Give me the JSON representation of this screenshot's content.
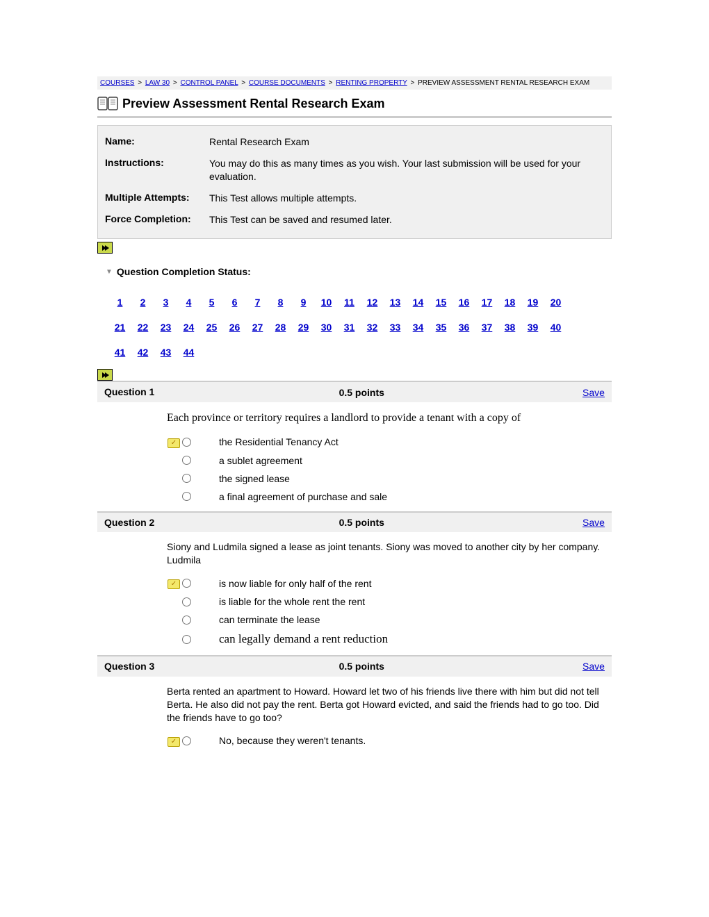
{
  "breadcrumb": {
    "items": [
      {
        "label": "COURSES"
      },
      {
        "label": "LAW 30"
      },
      {
        "label": "CONTROL PANEL"
      },
      {
        "label": "COURSE DOCUMENTS"
      },
      {
        "label": "RENTING PROPERTY"
      }
    ],
    "current": "PREVIEW ASSESSMENT RENTAL RESEARCH EXAM",
    "sep": ">"
  },
  "page_title": "Preview Assessment Rental Research Exam",
  "info": {
    "name_label": "Name:",
    "name_value": "Rental Research Exam",
    "instructions_label": "Instructions:",
    "instructions_value": "You may do this as many times as you wish. Your last submission will be used for your evaluation.",
    "attempts_label": "Multiple Attempts:",
    "attempts_value": "This Test allows multiple attempts.",
    "force_label": "Force Completion:",
    "force_value": "This Test can be saved and resumed later."
  },
  "qcs_label": "Question Completion Status:",
  "qnav": {
    "total": 44
  },
  "save_label": "Save",
  "questions": [
    {
      "num": "Question 1",
      "points": "0.5 points",
      "text": "Each province or territory requires a landlord to provide a tenant with a copy of",
      "text_serif": true,
      "options": [
        {
          "text": "the Residential Tenancy Act",
          "key": true
        },
        {
          "text": "a sublet agreement"
        },
        {
          "text": "the signed lease"
        },
        {
          "text": "a final agreement of purchase and sale"
        }
      ]
    },
    {
      "num": "Question 2",
      "points": "0.5 points",
      "text": "Siony and Ludmila signed a lease as joint tenants. Siony was moved to another city by her company. Ludmila",
      "text_serif": false,
      "options": [
        {
          "text": "is now liable for only half of the rent",
          "key": true
        },
        {
          "text": "is liable for the whole rent the rent"
        },
        {
          "text": "can terminate the lease"
        },
        {
          "text": "can legally demand a rent reduction",
          "serif": true
        }
      ]
    },
    {
      "num": "Question 3",
      "points": "0.5 points",
      "text": "Berta rented an apartment to Howard. Howard let two of his friends live there with him but did not tell Berta. He also did not pay the rent. Berta got Howard evicted, and said the friends had to go too. Did the friends have to go too?",
      "text_serif": false,
      "options": [
        {
          "text": "No, because they weren't tenants.",
          "key": true
        }
      ]
    }
  ],
  "colors": {
    "link": "#0000cc",
    "bg_panel": "#f0f0f0",
    "border": "#cccccc",
    "arrow_bg": "#c9d94a",
    "key_bg": "#f3e86b"
  }
}
